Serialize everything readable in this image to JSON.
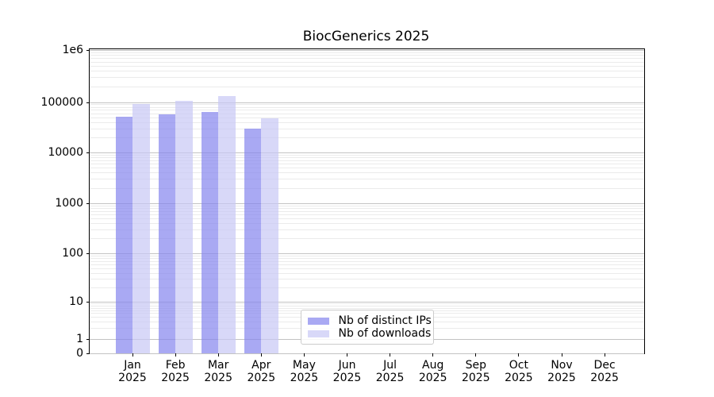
{
  "chart_data": {
    "type": "bar",
    "title": "BiocGenerics 2025",
    "scale_y": "symlog",
    "ylim": [
      0,
      1000000
    ],
    "grid": {
      "major_color": "#c3c3c3",
      "minor_color": "#ebebeb",
      "visible": true
    },
    "background_color": "#ffffff",
    "categories": [
      "Jan",
      "Feb",
      "Mar",
      "Apr",
      "May",
      "Jun",
      "Jul",
      "Aug",
      "Sep",
      "Oct",
      "Nov",
      "Dec"
    ],
    "year_label": "2025",
    "series": [
      {
        "name": "Nb of distinct IPs",
        "color": "rgba(133,133,238,0.7)",
        "values": [
          52000,
          58000,
          63000,
          30000,
          null,
          null,
          null,
          null,
          null,
          null,
          null,
          null
        ]
      },
      {
        "name": "Nb of downloads",
        "color": "rgba(200,200,245,0.7)",
        "values": [
          93000,
          104000,
          130000,
          48000,
          null,
          null,
          null,
          null,
          null,
          null,
          null,
          null
        ]
      }
    ],
    "y_ticks": [
      {
        "label": "1e6",
        "value": 1000000
      },
      {
        "label": "100000",
        "value": 100000
      },
      {
        "label": "10000",
        "value": 10000
      },
      {
        "label": "1000",
        "value": 1000
      },
      {
        "label": "100",
        "value": 100
      },
      {
        "label": "10",
        "value": 10
      },
      {
        "label": "1",
        "value": 1
      },
      {
        "label": "0",
        "value": 0
      }
    ],
    "legend": {
      "position": "lower center"
    }
  }
}
